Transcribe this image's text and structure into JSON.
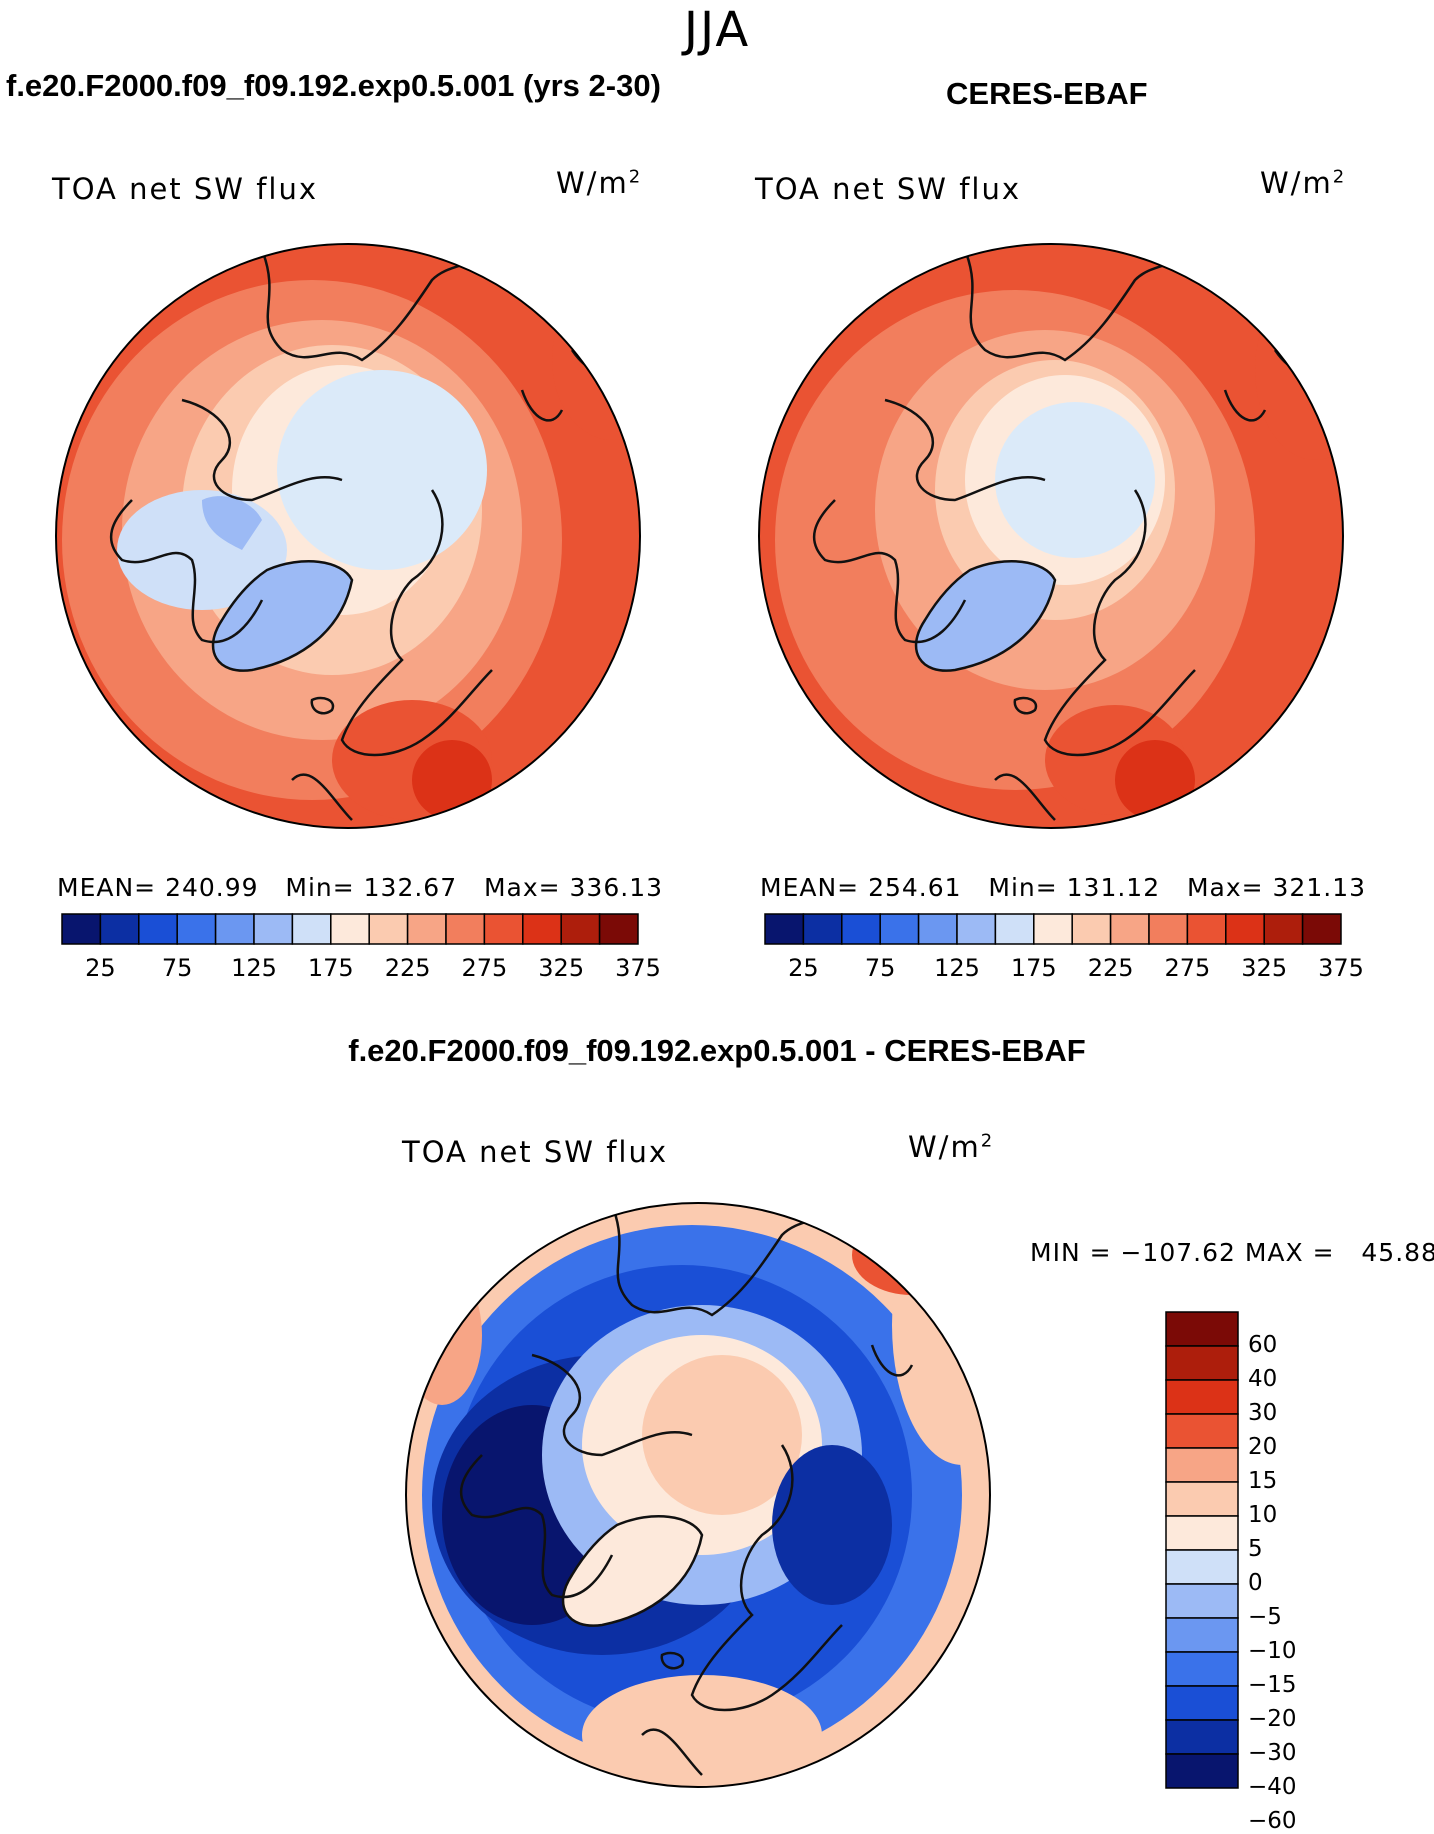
{
  "season": "JJA",
  "panels": [
    {
      "case_title": "f.e20.F2000.f09_f09.192.exp0.5.001 (yrs 2-30)",
      "variable": "TOA net SW flux",
      "units_base": "W/m",
      "units_exp": "2",
      "stats": "MEAN= 240.99   Min= 132.67   Max= 336.13"
    },
    {
      "case_title": "CERES-EBAF",
      "variable": "TOA net SW flux",
      "units_base": "W/m",
      "units_exp": "2",
      "stats": "MEAN= 254.61   Min= 131.12   Max= 321.13"
    },
    {
      "case_title": "f.e20.F2000.f09_f09.192.exp0.5.001 - CERES-EBAF",
      "variable": "TOA net SW flux",
      "units_base": "W/m",
      "units_exp": "2",
      "stats": "MIN = −107.62 MAX =   45.88"
    }
  ],
  "abs_colorbar": {
    "colors": [
      "#08156e",
      "#0c2fa3",
      "#1a4fd6",
      "#3a72ea",
      "#6b97f1",
      "#9cbaf5",
      "#cfe0f8",
      "#fde9db",
      "#fbcbb0",
      "#f7a586",
      "#f27e5d",
      "#ea5333",
      "#dc3217",
      "#ad1e0c",
      "#7b0a06"
    ],
    "labels": [
      "25",
      "75",
      "125",
      "175",
      "225",
      "275",
      "325",
      "375"
    ]
  },
  "diff_colorbar": {
    "colors": [
      "#7b0a06",
      "#ad1e0c",
      "#dc3217",
      "#ea5333",
      "#f7a586",
      "#fbcbb0",
      "#fde9db",
      "#cfe0f8",
      "#9cbaf5",
      "#6b97f1",
      "#3a72ea",
      "#1a4fd6",
      "#0c2fa3",
      "#08156e"
    ],
    "labels": [
      "60",
      "40",
      "30",
      "20",
      "15",
      "10",
      "5",
      "0",
      "−5",
      "−10",
      "−15",
      "−20",
      "−30",
      "−40",
      "−60"
    ]
  }
}
